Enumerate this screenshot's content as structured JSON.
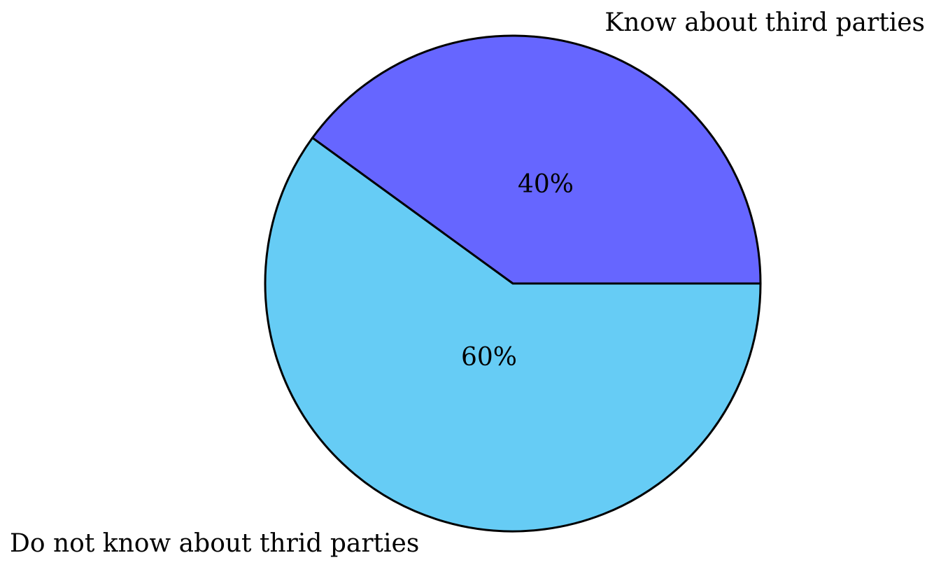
{
  "chart_data": {
    "type": "pie",
    "title": "",
    "categories": [
      "Know about third parties",
      "Do not know about thrid parties"
    ],
    "values": [
      40,
      60
    ],
    "value_labels": [
      "40%",
      "60%"
    ],
    "colors": [
      "#6666ff",
      "#66ccf5"
    ],
    "start_angle_deg": 0,
    "direction": "counterclockwise",
    "legend": "none"
  }
}
